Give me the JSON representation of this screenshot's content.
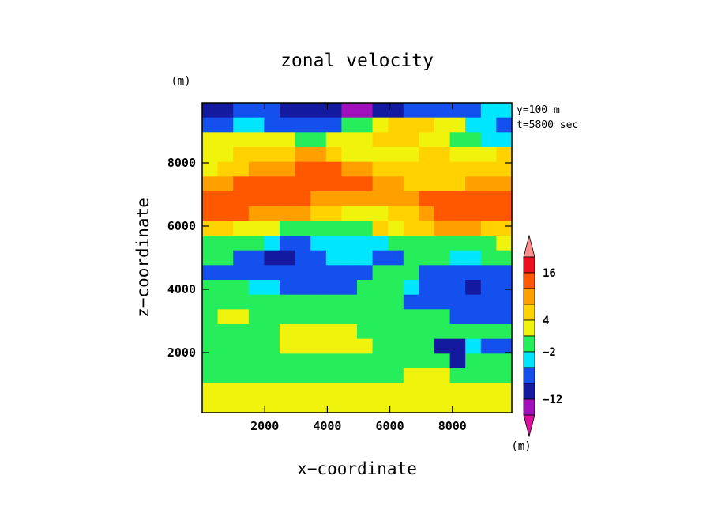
{
  "chart_data": {
    "type": "heatmap",
    "title": "zonal velocity",
    "xlabel": "x−coordinate",
    "ylabel": "z−coordinate",
    "x_unit": "(m)",
    "y_unit": "(m)",
    "annotations": [
      "y=100 m",
      "t=5800 sec"
    ],
    "xlim": [
      0,
      9900
    ],
    "ylim": [
      100,
      9900
    ],
    "xticks": [
      2000,
      4000,
      6000,
      8000
    ],
    "xtick_labels": [
      "2000",
      "4000",
      "6000",
      "8000"
    ],
    "yticks": [
      2000,
      4000,
      6000,
      8000
    ],
    "ytick_labels": [
      "2000",
      "4000",
      "6000",
      "8000"
    ],
    "colorbar": {
      "colors": [
        "#dd0fa0",
        "#a00fbb",
        "#141aa0",
        "#1450ee",
        "#00e6ff",
        "#25ee5a",
        "#f0f40c",
        "#ffd200",
        "#ff9f00",
        "#ff5800",
        "#ee0f1e",
        "#ff8d8d"
      ],
      "tick_labels": [
        "16",
        "4",
        "−2",
        "−12"
      ],
      "tick_after_band": [
        10,
        7,
        5,
        2
      ],
      "extend": "both"
    },
    "x_bins": [
      0,
      500,
      1000,
      1500,
      2000,
      2500,
      3000,
      3500,
      4000,
      4500,
      5000,
      5500,
      6000,
      6500,
      7000,
      7500,
      8000,
      8500,
      9000,
      9500
    ],
    "z_bins": [
      9800,
      9500,
      9000,
      8500,
      8000,
      7500,
      7000,
      6500,
      6000,
      5500,
      5000,
      4500,
      4000,
      3500,
      3000,
      2500,
      2000,
      1500,
      1000,
      500,
      200
    ],
    "field": [
      [
        -8,
        -8,
        -4,
        -4,
        -4,
        -8,
        -8,
        -8,
        -8,
        -12,
        -12,
        -8,
        -8,
        -4,
        -4,
        -4,
        -4,
        -4,
        -2,
        -2
      ],
      [
        -4,
        -4,
        -2,
        -2,
        -4,
        -4,
        -4,
        -4,
        -4,
        1,
        1,
        2,
        3,
        3,
        3,
        2,
        2,
        -2,
        -2,
        -4
      ],
      [
        2,
        2,
        2,
        2,
        2,
        2,
        1,
        1,
        2,
        2,
        2,
        3,
        3,
        3,
        2,
        2,
        1,
        1,
        -2,
        -2
      ],
      [
        2,
        2,
        3,
        3,
        3,
        3,
        5,
        5,
        3,
        2,
        2,
        2,
        2,
        2,
        3,
        3,
        2,
        2,
        2,
        3
      ],
      [
        2,
        3,
        3,
        5,
        5,
        5,
        7,
        7,
        7,
        5,
        5,
        3,
        3,
        3,
        3,
        3,
        3,
        3,
        3,
        3
      ],
      [
        5,
        5,
        7,
        7,
        7,
        7,
        7,
        7,
        7,
        7,
        7,
        5,
        5,
        3,
        3,
        3,
        3,
        5,
        5,
        5
      ],
      [
        7,
        7,
        7,
        7,
        7,
        7,
        7,
        5,
        5,
        5,
        5,
        5,
        5,
        5,
        7,
        7,
        7,
        7,
        7,
        7
      ],
      [
        7,
        7,
        7,
        5,
        5,
        5,
        5,
        3,
        3,
        2,
        2,
        2,
        3,
        3,
        5,
        7,
        7,
        7,
        7,
        7
      ],
      [
        3,
        3,
        2,
        2,
        2,
        1,
        1,
        1,
        1,
        1,
        1,
        3,
        2,
        3,
        3,
        5,
        5,
        5,
        3,
        3
      ],
      [
        1,
        1,
        1,
        1,
        -2,
        -4,
        -4,
        -2,
        -2,
        -2,
        -2,
        -2,
        1,
        1,
        1,
        1,
        1,
        1,
        1,
        2
      ],
      [
        1,
        1,
        -4,
        -4,
        -8,
        -8,
        -4,
        -4,
        -2,
        -2,
        -2,
        -4,
        -4,
        1,
        1,
        1,
        -2,
        -2,
        1,
        1
      ],
      [
        -4,
        -4,
        -4,
        -4,
        -4,
        -4,
        -4,
        -4,
        -4,
        -4,
        -4,
        1,
        1,
        1,
        -4,
        -4,
        -4,
        -4,
        -4,
        -4
      ],
      [
        1,
        1,
        1,
        -2,
        -2,
        -4,
        -4,
        -4,
        -4,
        -4,
        1,
        1,
        1,
        -2,
        -4,
        -4,
        -4,
        -8,
        -4,
        -4
      ],
      [
        1,
        1,
        1,
        1,
        1,
        1,
        1,
        1,
        1,
        1,
        1,
        1,
        1,
        -4,
        -4,
        -4,
        -4,
        -4,
        -4,
        -4
      ],
      [
        1,
        2,
        2,
        1,
        1,
        1,
        1,
        1,
        1,
        1,
        1,
        1,
        1,
        1,
        1,
        1,
        -4,
        -4,
        -4,
        -4
      ],
      [
        1,
        1,
        1,
        1,
        1,
        2,
        2,
        2,
        2,
        2,
        1,
        1,
        1,
        1,
        1,
        1,
        1,
        1,
        1,
        1
      ],
      [
        1,
        1,
        1,
        1,
        1,
        2,
        2,
        2,
        2,
        2,
        2,
        1,
        1,
        1,
        1,
        -8,
        -8,
        -2,
        -4,
        -4
      ],
      [
        1,
        1,
        1,
        1,
        1,
        1,
        1,
        1,
        1,
        1,
        1,
        1,
        1,
        1,
        1,
        1,
        -8,
        1,
        1,
        1
      ],
      [
        1,
        1,
        1,
        1,
        1,
        1,
        1,
        1,
        1,
        1,
        1,
        1,
        1,
        2,
        2,
        2,
        1,
        1,
        1,
        1
      ],
      [
        2,
        2,
        2,
        2,
        2,
        2,
        2,
        2,
        2,
        2,
        2,
        2,
        2,
        2,
        2,
        2,
        2,
        2,
        2,
        2
      ],
      [
        2,
        2,
        2,
        2,
        2,
        2,
        2,
        2,
        2,
        2,
        2,
        2,
        2,
        2,
        2,
        2,
        2,
        2,
        2,
        2
      ]
    ],
    "levels": [
      -16,
      -12,
      -8,
      -4,
      -2,
      1,
      2,
      3,
      5,
      7,
      10,
      16
    ]
  }
}
